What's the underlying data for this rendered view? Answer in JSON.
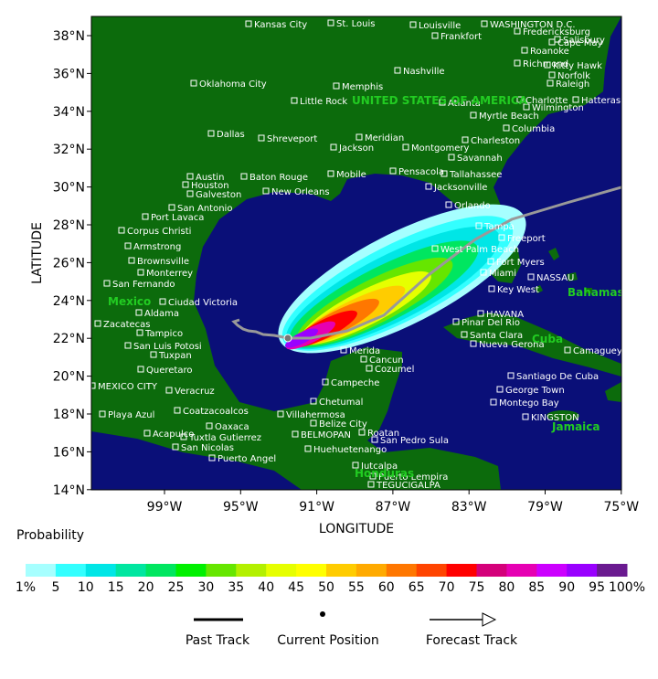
{
  "map": {
    "x_label": "LONGITUDE",
    "y_label": "LATITUDE",
    "x_ticks": [
      "99°W",
      "95°W",
      "91°W",
      "87°W",
      "83°W",
      "79°W",
      "75°W"
    ],
    "y_ticks": [
      "38°N",
      "36°N",
      "34°N",
      "32°N",
      "30°N",
      "28°N",
      "26°N",
      "24°N",
      "22°N",
      "20°N",
      "18°N",
      "16°N",
      "14°N"
    ],
    "regions": [
      "UNITED STATES OF AMERICA",
      "Mexico",
      "Bahamas",
      "Cuba",
      "Jamaica",
      "Honduras"
    ],
    "cities": [
      "Kansas City",
      "St. Louis",
      "Louisville",
      "Frankfort",
      "WASHINGTON D.C.",
      "Fredericksburg",
      "Salisbury",
      "Cape May",
      "Roanoke",
      "Richmond",
      "Kitty Hawk",
      "Norfolk",
      "Raleigh",
      "Hatteras",
      "Oklahoma City",
      "Nashville",
      "Memphis",
      "Little Rock",
      "Atlanta",
      "Charlotte",
      "Wilmington",
      "Myrtle Beach",
      "Columbia",
      "Dallas",
      "Shreveport",
      "Meridian",
      "Jackson",
      "Montgomery",
      "Charleston",
      "Savannah",
      "Austin",
      "Houston",
      "Galveston",
      "Baton Rouge",
      "New Orleans",
      "Mobile",
      "Pensacola",
      "Tallahassee",
      "Jacksonville",
      "San Antonio",
      "Orlando",
      "Port Lavaca",
      "Tampa",
      "Corpus Christi",
      "Freeport",
      "Armstrong",
      "West Palm Beach",
      "Brownsville",
      "Fort Myers",
      "Monterrey",
      "Miami",
      "NASSAU",
      "San Fernando",
      "Key West",
      "Ciudad Victoria",
      "Aldama",
      "HAVANA",
      "Zacatecas",
      "Pinar Del Rio",
      "Tampico",
      "Santa Clara",
      "San Luis Potosi",
      "Nueva Gerona",
      "Merida",
      "Camaguey",
      "Tuxpan",
      "Cancun",
      "Queretaro",
      "Cozumel",
      "Santiago De Cuba",
      "Campeche",
      "MEXICO CITY",
      "Veracruz",
      "George Town",
      "Chetumal",
      "Montego Bay",
      "Coatzacoalcos",
      "Villahermosa",
      "KINGSTON",
      "Playa Azul",
      "Belize City",
      "Oaxaca",
      "Roatan",
      "Acapulco",
      "Tuxtla Gutierrez",
      "BELMOPAN",
      "San Pedro Sula",
      "San Nicolas",
      "Huehuetenango",
      "Puerto Angel",
      "Jutcalpa",
      "Puerto Lempira",
      "TEGUCIGALPA"
    ]
  },
  "colorbar": {
    "title": "Probability",
    "labels": [
      "1%",
      "5",
      "10",
      "15",
      "20",
      "25",
      "30",
      "35",
      "40",
      "45",
      "50",
      "55",
      "60",
      "65",
      "70",
      "75",
      "80",
      "85",
      "90",
      "95",
      "100%"
    ],
    "colors": [
      "#a6ffff",
      "#33ffff",
      "#00e6e6",
      "#00e6a0",
      "#00e660",
      "#00f000",
      "#66e600",
      "#b3f000",
      "#e6ff00",
      "#ffff00",
      "#ffcc00",
      "#ffaa00",
      "#ff7700",
      "#ff4400",
      "#ff0000",
      "#d4007a",
      "#e600b3",
      "#cc00ff",
      "#9900ff",
      "#6a1a90"
    ]
  },
  "legend": {
    "past": "Past Track",
    "current": "Current Position",
    "forecast": "Forecast Track"
  }
}
